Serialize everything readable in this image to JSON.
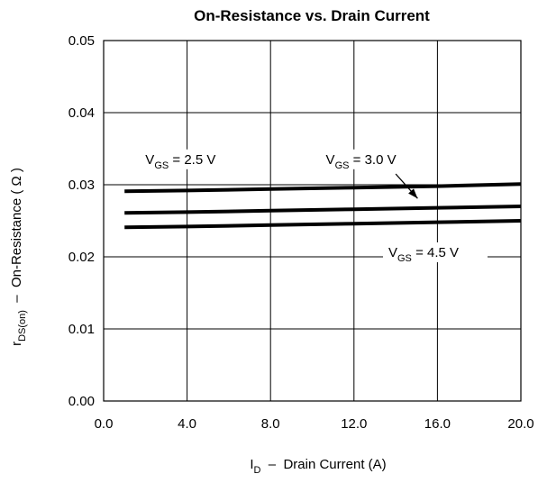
{
  "chart_data": {
    "type": "line",
    "title": "On-Resistance vs. Drain Current",
    "xlabel": {
      "main": "I",
      "sub": "D",
      "rest": "  –  Drain Current (A)"
    },
    "ylabel": {
      "main": "r",
      "sub": "DS(on)",
      "rest": "  –  On-Resistance ( Ω )"
    },
    "xlim": [
      0,
      20
    ],
    "ylim": [
      0,
      0.05
    ],
    "x_ticks": [
      0,
      4,
      8,
      12,
      16,
      20
    ],
    "x_tick_labels": [
      "0.0",
      "4.0",
      "8.0",
      "12.0",
      "16.0",
      "20.0"
    ],
    "y_ticks": [
      0,
      0.01,
      0.02,
      0.03,
      0.04,
      0.05
    ],
    "y_tick_labels": [
      "0.00",
      "0.01",
      "0.02",
      "0.03",
      "0.04",
      "0.05"
    ],
    "grid": true,
    "x": [
      1,
      4,
      8,
      12,
      16,
      20
    ],
    "series": [
      {
        "label_main": "V",
        "label_sub": "GS",
        "label_rest": " = 2.5 V",
        "values": [
          0.0291,
          0.0292,
          0.0294,
          0.0296,
          0.0298,
          0.0301
        ]
      },
      {
        "label_main": "V",
        "label_sub": "GS",
        "label_rest": " = 3.0 V",
        "values": [
          0.0261,
          0.0262,
          0.0264,
          0.0266,
          0.0268,
          0.027
        ]
      },
      {
        "label_main": "V",
        "label_sub": "GS",
        "label_rest": " = 4.5 V",
        "values": [
          0.0241,
          0.0242,
          0.0244,
          0.0246,
          0.0248,
          0.025
        ]
      }
    ]
  }
}
